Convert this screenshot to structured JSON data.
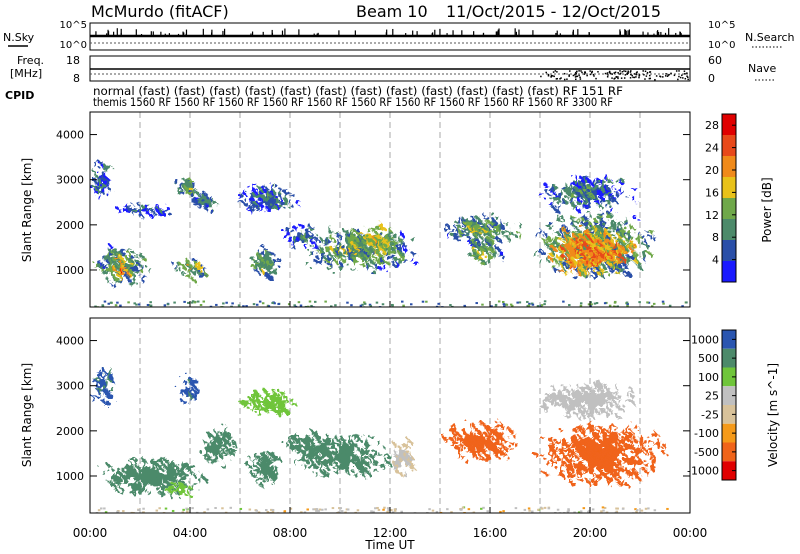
{
  "header": {
    "title": "McMurdo (fitACF)",
    "beam": "Beam 10",
    "dates": "11/Oct/2015 - 12/Oct/2015"
  },
  "top_panels": {
    "nsky_label": "N.Sky",
    "nsky_ticks": [
      "10^5",
      "10^0"
    ],
    "nsearch_label": "N.Search",
    "nsearch_ticks": [
      "10^5",
      "10^0"
    ],
    "freq_label_1": "Freq.",
    "freq_label_2": "[MHz]",
    "freq_ticks": [
      "18",
      "8"
    ],
    "nave_label": "Nave",
    "nave_ticks": [
      "60",
      "0"
    ],
    "cpid_label": "CPID"
  },
  "cpid_rows": {
    "row1": "normal (fast) (fast) (fast) (fast) (fast) (fast) (fast) (fast) (fast) (fast) (fast) (fast) RF 151 RF",
    "row2": "themis 1560 RF 1560 RF 1560 RF 1560 RF 1560 RF 1560 RF 1560 RF 1560 RF 1560 RF 1560 RF 3300 RF"
  },
  "xaxis": {
    "label": "Time UT",
    "ticks": [
      "00:00",
      "04:00",
      "08:00",
      "12:00",
      "16:00",
      "20:00",
      "00:00"
    ]
  },
  "colors": {
    "power_scale": [
      "#1a1aff",
      "#2a4fa8",
      "#4c8a6a",
      "#6fa84a",
      "#e8c21a",
      "#f08a1a",
      "#e8491a",
      "#e00000"
    ],
    "velocity_scale": [
      "#e00000",
      "#f0641a",
      "#f59a1a",
      "#d8c29a",
      "#c0c0c0",
      "#6fc53a",
      "#4c8a6a",
      "#2a55b0"
    ]
  },
  "chart_data": [
    {
      "type": "heatmap",
      "title": "Power",
      "ylabel": "Slant Range [km]",
      "xlabel": "Time UT",
      "ylim": [
        180,
        4500
      ],
      "xlim_hours": [
        0,
        24
      ],
      "yticks": [
        "1000",
        "2000",
        "3000",
        "4000"
      ],
      "colorbar_label": "Power [dB]",
      "colorbar_ticks": [
        "28",
        "24",
        "20",
        "16",
        "12",
        "8",
        "4"
      ],
      "colorbar_range": [
        0,
        30
      ],
      "blobs": [
        {
          "t0": 0.2,
          "t1": 2.4,
          "r0": 650,
          "r1": 1550,
          "level": 13
        },
        {
          "t0": 0.8,
          "t1": 1.6,
          "r0": 800,
          "r1": 1200,
          "level": 22
        },
        {
          "t0": 0.1,
          "t1": 0.8,
          "r0": 2500,
          "r1": 3500,
          "level": 9
        },
        {
          "t0": 1.0,
          "t1": 3.2,
          "r0": 2200,
          "r1": 2500,
          "level": 8
        },
        {
          "t0": 3.3,
          "t1": 4.7,
          "r0": 750,
          "r1": 1300,
          "level": 15
        },
        {
          "t0": 3.5,
          "t1": 4.3,
          "r0": 2600,
          "r1": 3100,
          "level": 14
        },
        {
          "t0": 4.0,
          "t1": 5.0,
          "r0": 2300,
          "r1": 2700,
          "level": 10
        },
        {
          "t0": 6.5,
          "t1": 7.6,
          "r0": 800,
          "r1": 1500,
          "level": 15
        },
        {
          "t0": 5.9,
          "t1": 8.4,
          "r0": 2300,
          "r1": 2900,
          "level": 9
        },
        {
          "t0": 7.8,
          "t1": 9.3,
          "r0": 1500,
          "r1": 2000,
          "level": 9
        },
        {
          "t0": 8.2,
          "t1": 13.2,
          "r0": 1000,
          "r1": 1900,
          "level": 13
        },
        {
          "t0": 10.2,
          "t1": 12.5,
          "r0": 1400,
          "r1": 2000,
          "level": 17
        },
        {
          "t0": 14.0,
          "t1": 17.2,
          "r0": 1600,
          "r1": 2200,
          "level": 13
        },
        {
          "t0": 15.0,
          "t1": 16.5,
          "r0": 1100,
          "r1": 1800,
          "level": 14
        },
        {
          "t0": 17.8,
          "t1": 22.6,
          "r0": 800,
          "r1": 2300,
          "level": 14
        },
        {
          "t0": 18.3,
          "t1": 21.8,
          "r0": 900,
          "r1": 1900,
          "level": 23
        },
        {
          "t0": 18.0,
          "t1": 21.8,
          "r0": 2300,
          "r1": 3100,
          "level": 10
        }
      ]
    },
    {
      "type": "heatmap",
      "title": "Velocity",
      "ylabel": "Slant Range [km]",
      "xlabel": "Time UT",
      "ylim": [
        180,
        4500
      ],
      "xlim_hours": [
        0,
        24
      ],
      "yticks": [
        "1000",
        "2000",
        "3000",
        "4000"
      ],
      "colorbar_label": "Velocity [m s^-1]",
      "colorbar_ticks": [
        "1000",
        "500",
        "100",
        "25",
        "-25",
        "-100",
        "-500",
        "-1000"
      ],
      "colorbar_range": [
        -1000,
        1000
      ],
      "blobs": [
        {
          "t0": 0.2,
          "t1": 4.6,
          "r0": 600,
          "r1": 1400,
          "vel": 300
        },
        {
          "t0": 2.9,
          "t1": 4.0,
          "r0": 500,
          "r1": 900,
          "vel": 80
        },
        {
          "t0": 0.1,
          "t1": 0.9,
          "r0": 2500,
          "r1": 3500,
          "vel": 600
        },
        {
          "t0": 3.6,
          "t1": 4.4,
          "r0": 2600,
          "r1": 3200,
          "vel": 700
        },
        {
          "t0": 4.5,
          "t1": 5.8,
          "r0": 1200,
          "r1": 2100,
          "vel": 300
        },
        {
          "t0": 6.3,
          "t1": 7.7,
          "r0": 800,
          "r1": 1600,
          "vel": 300
        },
        {
          "t0": 5.9,
          "t1": 8.4,
          "r0": 2300,
          "r1": 2900,
          "vel": 60
        },
        {
          "t0": 7.8,
          "t1": 9.3,
          "r0": 1500,
          "r1": 2000,
          "vel": 300
        },
        {
          "t0": 8.2,
          "t1": 12.0,
          "r0": 1000,
          "r1": 1900,
          "vel": 300
        },
        {
          "t0": 12.0,
          "t1": 13.0,
          "r0": 1000,
          "r1": 1900,
          "vel": 0
        },
        {
          "t0": 14.0,
          "t1": 17.2,
          "r0": 1350,
          "r1": 2200,
          "vel": -200
        },
        {
          "t0": 17.8,
          "t1": 23.0,
          "r0": 800,
          "r1": 2200,
          "vel": -200
        },
        {
          "t0": 18.0,
          "t1": 21.8,
          "r0": 2300,
          "r1": 3100,
          "vel": 10
        }
      ]
    }
  ]
}
